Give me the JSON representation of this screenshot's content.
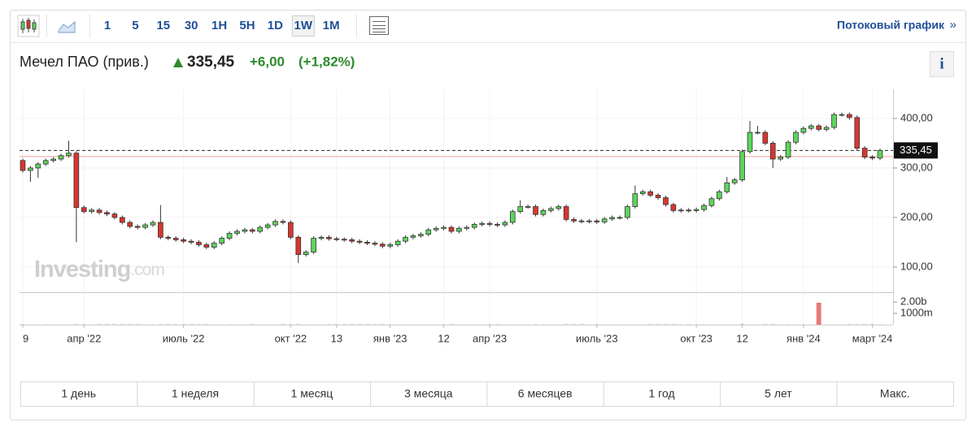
{
  "toolbar": {
    "intervals": [
      "1",
      "5",
      "15",
      "30",
      "1H",
      "5H",
      "1D",
      "1W",
      "1M"
    ],
    "selected": "1W",
    "stream_link": "Потоковый график",
    "stream_arrow": "»"
  },
  "header": {
    "name": "Мечел ПАО (прив.)",
    "price": "335,45",
    "change": "+6,00",
    "change_pct": "(+1,82%)",
    "info": "i"
  },
  "watermark": [
    "Investing",
    ".com"
  ],
  "ranges": [
    "1 день",
    "1 неделя",
    "1 месяц",
    "3 месяца",
    "6 месяцев",
    "1 год",
    "5 лет",
    "Макс."
  ],
  "chart_data": {
    "type": "candlestick",
    "categories": [
      "9",
      null,
      null,
      null,
      null,
      null,
      null,
      null,
      "апр '22",
      null,
      null,
      null,
      null,
      null,
      null,
      null,
      null,
      null,
      null,
      null,
      null,
      "июль '22",
      null,
      null,
      null,
      null,
      null,
      null,
      null,
      null,
      null,
      null,
      null,
      null,
      null,
      "окт '22",
      null,
      null,
      null,
      null,
      null,
      "13",
      null,
      null,
      null,
      null,
      null,
      null,
      "янв '23",
      null,
      null,
      null,
      null,
      null,
      null,
      "12",
      null,
      null,
      null,
      null,
      null,
      "апр '23",
      null,
      null,
      null,
      null,
      null,
      null,
      null,
      null,
      null,
      null,
      null,
      null,
      null,
      "июль '23",
      null,
      null,
      null,
      null,
      null,
      null,
      null,
      null,
      null,
      null,
      null,
      null,
      "окт '23",
      null,
      null,
      null,
      null,
      null,
      "12",
      null,
      null,
      null,
      null,
      null,
      null,
      null,
      "янв '24",
      null,
      null,
      null,
      null,
      null,
      null,
      null,
      null,
      "март '24",
      null
    ],
    "open": [
      315,
      295,
      300,
      308,
      315,
      318,
      325,
      330,
      220,
      212,
      215,
      210,
      207,
      200,
      190,
      182,
      180,
      185,
      190,
      160,
      158,
      155,
      152,
      150,
      145,
      140,
      148,
      158,
      168,
      172,
      175,
      172,
      180,
      185,
      192,
      190,
      160,
      125,
      130,
      158,
      160,
      157,
      156,
      155,
      152,
      150,
      148,
      146,
      142,
      145,
      152,
      160,
      163,
      166,
      175,
      178,
      180,
      172,
      178,
      180,
      186,
      188,
      186,
      185,
      190,
      212,
      222,
      222,
      206,
      214,
      218,
      222,
      196,
      193,
      192,
      193,
      191,
      197,
      200,
      200,
      222,
      248,
      252,
      245,
      240,
      226,
      214,
      215,
      214,
      216,
      224,
      238,
      252,
      270,
      276,
      333,
      372,
      372,
      350,
      318,
      322,
      352,
      372,
      380,
      385,
      378,
      382,
      408,
      408,
      402,
      340,
      322,
      320
    ],
    "high": [
      319,
      304,
      312,
      319,
      322,
      329,
      355,
      334,
      224,
      219,
      219,
      214,
      211,
      204,
      194,
      186,
      189,
      194,
      225,
      164,
      162,
      159,
      156,
      154,
      149,
      152,
      162,
      172,
      176,
      179,
      179,
      184,
      189,
      196,
      196,
      194,
      164,
      134,
      162,
      164,
      164,
      161,
      160,
      159,
      156,
      154,
      152,
      150,
      149,
      156,
      164,
      167,
      170,
      179,
      182,
      184,
      184,
      182,
      184,
      190,
      192,
      192,
      190,
      194,
      216,
      235,
      226,
      226,
      218,
      222,
      226,
      226,
      200,
      197,
      197,
      197,
      201,
      204,
      204,
      226,
      265,
      256,
      256,
      249,
      244,
      230,
      219,
      219,
      220,
      228,
      242,
      256,
      282,
      280,
      337,
      395,
      385,
      376,
      354,
      326,
      356,
      376,
      384,
      389,
      389,
      386,
      412,
      412,
      412,
      406,
      344,
      326,
      339
    ],
    "low": [
      291,
      272,
      280,
      304,
      311,
      314,
      321,
      150,
      208,
      208,
      206,
      203,
      196,
      186,
      178,
      176,
      176,
      181,
      156,
      154,
      151,
      148,
      146,
      141,
      136,
      136,
      144,
      154,
      164,
      168,
      168,
      168,
      176,
      181,
      186,
      156,
      108,
      121,
      126,
      154,
      153,
      152,
      151,
      148,
      146,
      144,
      142,
      138,
      138,
      141,
      148,
      156,
      159,
      162,
      171,
      174,
      168,
      168,
      174,
      176,
      182,
      182,
      181,
      181,
      186,
      208,
      218,
      202,
      202,
      210,
      214,
      192,
      189,
      188,
      188,
      187,
      187,
      193,
      196,
      196,
      218,
      244,
      241,
      236,
      222,
      210,
      210,
      210,
      210,
      212,
      220,
      234,
      248,
      266,
      272,
      329,
      368,
      346,
      300,
      314,
      318,
      348,
      368,
      376,
      374,
      374,
      378,
      404,
      398,
      336,
      318,
      316,
      316
    ],
    "close": [
      295,
      300,
      308,
      315,
      318,
      325,
      330,
      220,
      212,
      215,
      210,
      207,
      200,
      190,
      182,
      180,
      185,
      190,
      160,
      158,
      155,
      152,
      150,
      145,
      140,
      148,
      158,
      168,
      172,
      175,
      172,
      180,
      185,
      192,
      190,
      160,
      125,
      130,
      158,
      160,
      157,
      156,
      155,
      152,
      150,
      148,
      146,
      142,
      145,
      152,
      160,
      163,
      166,
      175,
      178,
      180,
      172,
      178,
      180,
      186,
      188,
      186,
      185,
      190,
      212,
      222,
      222,
      206,
      214,
      218,
      222,
      196,
      193,
      192,
      193,
      191,
      197,
      200,
      200,
      222,
      248,
      252,
      245,
      240,
      226,
      214,
      215,
      214,
      216,
      224,
      238,
      252,
      270,
      276,
      333,
      372,
      372,
      350,
      318,
      322,
      352,
      372,
      380,
      385,
      378,
      382,
      408,
      408,
      402,
      340,
      322,
      320,
      335.45
    ],
    "volume": [
      20000000,
      20000000,
      20000000,
      20000000,
      20000000,
      20000000,
      20000000,
      20000000,
      20000000,
      20000000,
      20000000,
      20000000,
      20000000,
      20000000,
      20000000,
      20000000,
      20000000,
      20000000,
      20000000,
      20000000,
      20000000,
      20000000,
      20000000,
      20000000,
      20000000,
      20000000,
      20000000,
      20000000,
      20000000,
      20000000,
      20000000,
      20000000,
      20000000,
      20000000,
      20000000,
      20000000,
      20000000,
      20000000,
      20000000,
      20000000,
      20000000,
      20000000,
      20000000,
      20000000,
      20000000,
      20000000,
      20000000,
      20000000,
      20000000,
      20000000,
      20000000,
      20000000,
      20000000,
      20000000,
      20000000,
      20000000,
      20000000,
      20000000,
      20000000,
      20000000,
      20000000,
      20000000,
      20000000,
      20000000,
      20000000,
      20000000,
      20000000,
      20000000,
      20000000,
      20000000,
      20000000,
      20000000,
      20000000,
      20000000,
      20000000,
      20000000,
      20000000,
      20000000,
      20000000,
      20000000,
      20000000,
      20000000,
      20000000,
      20000000,
      20000000,
      20000000,
      20000000,
      20000000,
      20000000,
      20000000,
      20000000,
      20000000,
      20000000,
      20000000,
      60000000,
      20000000,
      20000000,
      20000000,
      20000000,
      20000000,
      20000000,
      20000000,
      20000000,
      20000000,
      1930000000,
      20000000,
      20000000,
      20000000,
      20000000,
      20000000,
      20000000,
      20000000,
      20000000
    ],
    "ylim": [
      49,
      459
    ],
    "yticks": [
      {
        "value": 100,
        "label": "100,00"
      },
      {
        "value": 200,
        "label": "200,00"
      },
      {
        "value": 300,
        "label": "300,00"
      },
      {
        "value": 400,
        "label": "400,00"
      }
    ],
    "vlim": [
      0,
      2860000000
    ],
    "vticks": [
      {
        "value": 1000000000,
        "label": "1000m"
      },
      {
        "value": 2000000000,
        "label": "2.00b"
      }
    ],
    "last_price": {
      "value": 335.45,
      "label": "335,45"
    },
    "reference_line": 323,
    "up_color": "#5cd65c",
    "down_color": "#d9362f",
    "grid": true
  }
}
